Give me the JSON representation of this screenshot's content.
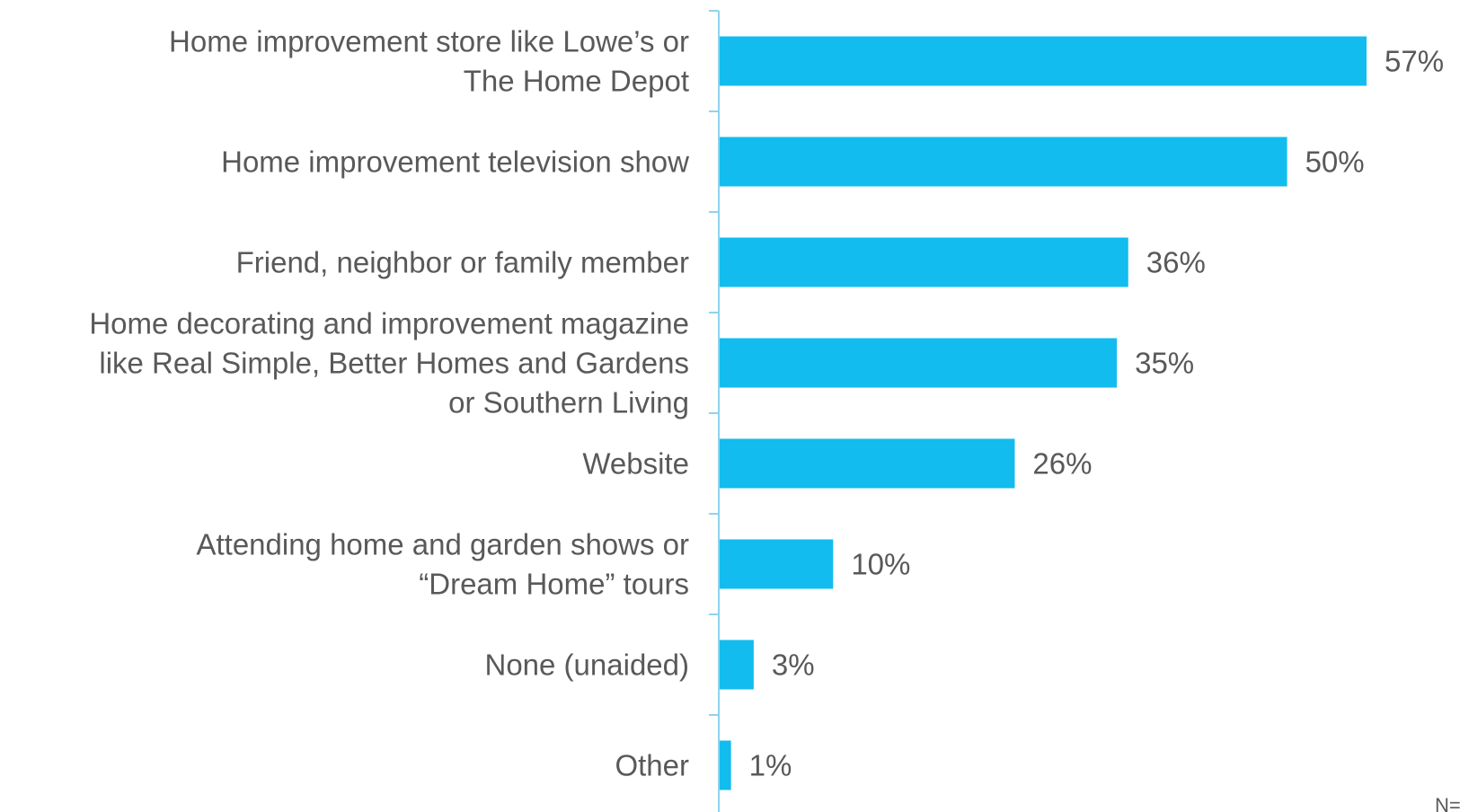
{
  "chart_data": {
    "type": "bar",
    "orientation": "horizontal",
    "title": "",
    "xlabel": "",
    "ylabel": "",
    "categories": [
      [
        "Home improvement store like Lowe’s or",
        "The Home Depot"
      ],
      [
        "Home improvement television show"
      ],
      [
        "Friend, neighbor or family member"
      ],
      [
        "Home decorating and improvement magazine",
        "like Real Simple, Better Homes and Gardens",
        "or Southern Living"
      ],
      [
        "Website"
      ],
      [
        "Attending home and garden shows or",
        "“Dream Home” tours"
      ],
      [
        "None (unaided)"
      ],
      [
        "Other"
      ]
    ],
    "values": [
      57,
      50,
      36,
      35,
      26,
      10,
      3,
      1
    ],
    "value_labels": [
      "57%",
      "50%",
      "36%",
      "35%",
      "26%",
      "10%",
      "3%",
      "1%"
    ],
    "xlim": [
      0,
      57
    ],
    "grid": false,
    "colors": {
      "bar": "#12BCEE",
      "axis": "#8FD3EE",
      "text": "#595959"
    }
  },
  "footnote": "N="
}
